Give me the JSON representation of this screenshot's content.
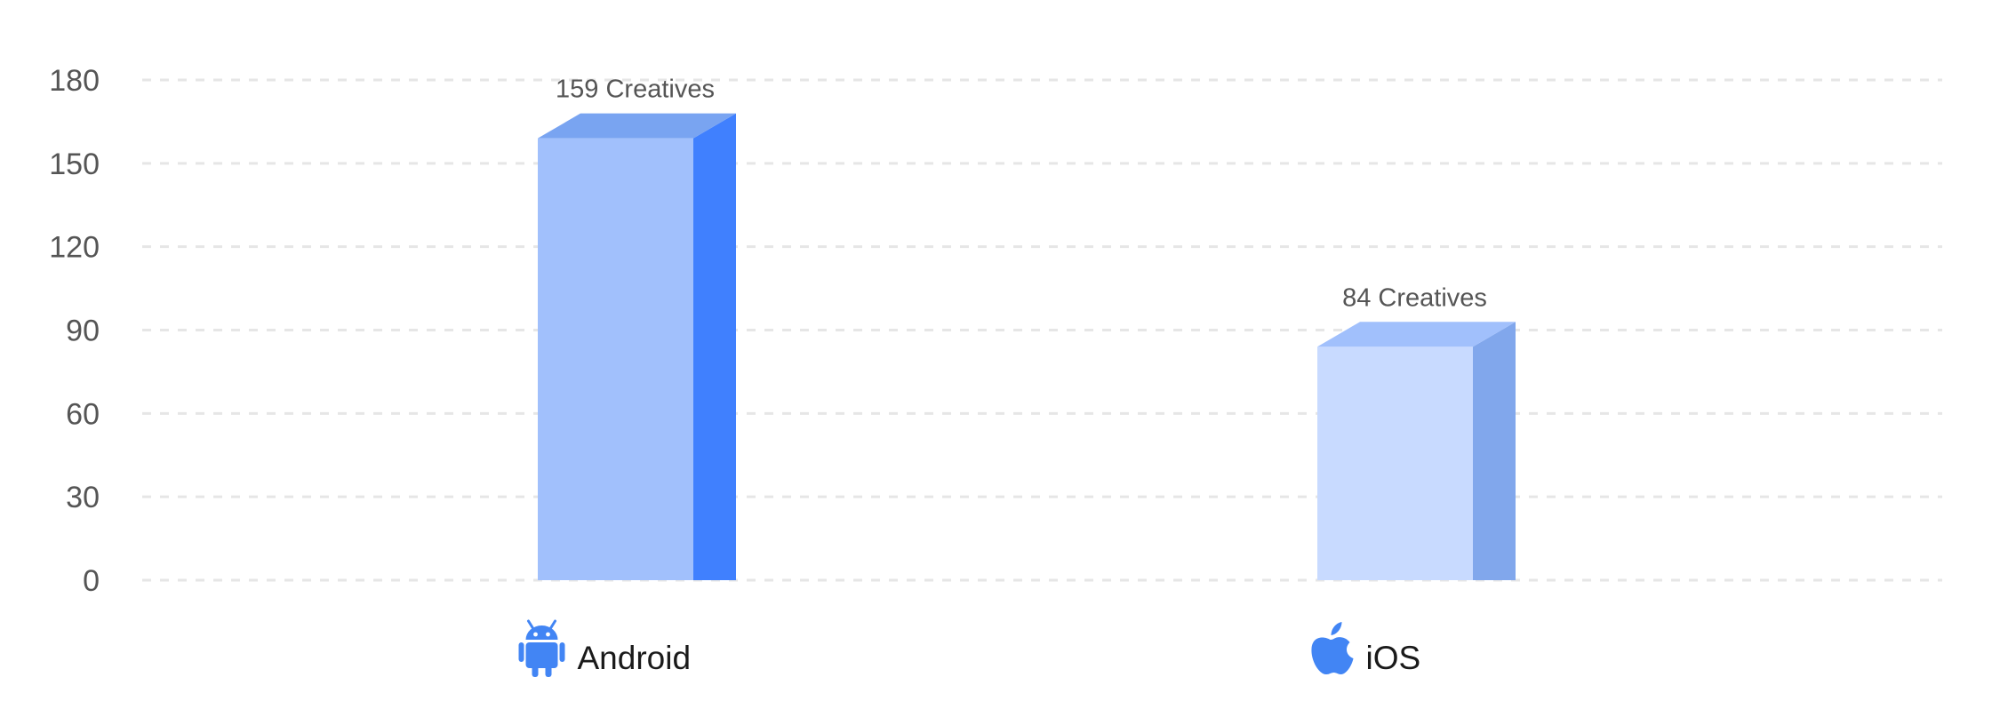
{
  "chart_data": {
    "type": "bar",
    "categories": [
      "Android",
      "iOS"
    ],
    "category_icons": [
      "android-icon",
      "apple-icon"
    ],
    "values": [
      159,
      84
    ],
    "data_labels": [
      "159 Creatives",
      "84 Creatives"
    ],
    "yticks": [
      0,
      30,
      60,
      90,
      120,
      150,
      180
    ],
    "ylim": [
      0,
      180
    ],
    "title": "",
    "xlabel": "",
    "ylabel": "",
    "grid": true,
    "legend": "none",
    "colors": {
      "android_front": "#a1c0fc",
      "android_side": "#4080fe",
      "android_top": "#79a4f1",
      "ios_front": "#c8daff",
      "ios_side": "#81a7ec",
      "ios_top": "#a1c0fc",
      "icon": "#4285f4"
    }
  }
}
